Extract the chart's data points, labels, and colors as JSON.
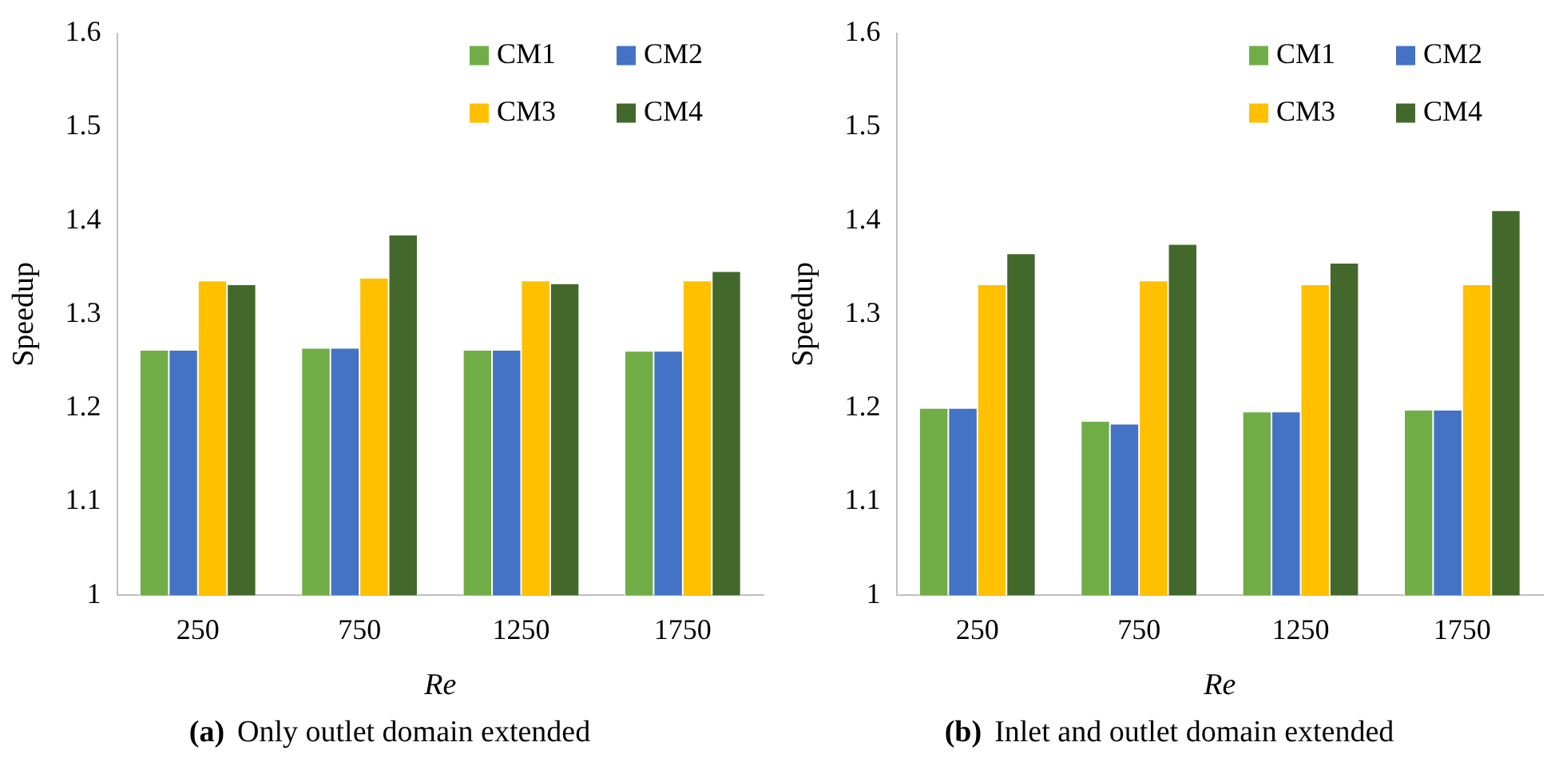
{
  "chart_data": [
    {
      "type": "bar",
      "title": "(a) Only outlet domain extended",
      "xlabel": "Re",
      "ylabel": "Speedup",
      "categories": [
        "250",
        "750",
        "1250",
        "1750"
      ],
      "series": [
        {
          "name": "CM1",
          "color": "#70ad47",
          "values": [
            1.262,
            1.264,
            1.262,
            1.261
          ]
        },
        {
          "name": "CM2",
          "color": "#4472c4",
          "values": [
            1.262,
            1.264,
            1.262,
            1.261
          ]
        },
        {
          "name": "CM3",
          "color": "#ffc000",
          "values": [
            1.336,
            1.339,
            1.336,
            1.336
          ]
        },
        {
          "name": "CM4",
          "color": "#43682b",
          "values": [
            1.332,
            1.385,
            1.333,
            1.346
          ]
        }
      ],
      "ylim": [
        1,
        1.6
      ],
      "yticks": [
        1,
        1.1,
        1.2,
        1.3,
        1.4,
        1.5,
        1.6
      ],
      "grid": false,
      "legend": "top right"
    },
    {
      "type": "bar",
      "title": "(b) Inlet and outlet domain extended",
      "xlabel": "Re",
      "ylabel": "Speedup",
      "categories": [
        "250",
        "750",
        "1250",
        "1750"
      ],
      "series": [
        {
          "name": "CM1",
          "color": "#70ad47",
          "values": [
            1.2,
            1.186,
            1.196,
            1.198
          ]
        },
        {
          "name": "CM2",
          "color": "#4472c4",
          "values": [
            1.2,
            1.183,
            1.196,
            1.198
          ]
        },
        {
          "name": "CM3",
          "color": "#ffc000",
          "values": [
            1.332,
            1.336,
            1.332,
            1.332
          ]
        },
        {
          "name": "CM4",
          "color": "#43682b",
          "values": [
            1.365,
            1.375,
            1.355,
            1.411
          ]
        }
      ],
      "ylim": [
        1,
        1.6
      ],
      "yticks": [
        1,
        1.1,
        1.2,
        1.3,
        1.4,
        1.5,
        1.6
      ],
      "grid": false,
      "legend": "top right"
    }
  ]
}
